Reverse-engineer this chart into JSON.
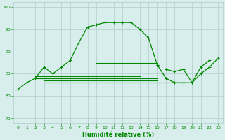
{
  "xlabel": "Humidité relative (%)",
  "background_color": "#d8eeed",
  "grid_color": "#b0cccc",
  "line_color": "#008800",
  "xlim": [
    -0.5,
    23.5
  ],
  "ylim": [
    74,
    101
  ],
  "yticks": [
    75,
    80,
    85,
    90,
    95,
    100
  ],
  "xticks": [
    0,
    1,
    2,
    3,
    4,
    5,
    6,
    7,
    8,
    9,
    10,
    11,
    12,
    13,
    14,
    15,
    16,
    17,
    18,
    19,
    20,
    21,
    22,
    23
  ],
  "curve_main": {
    "x": [
      0,
      1,
      2,
      3,
      4,
      5,
      6,
      7,
      8,
      9,
      10,
      11,
      12,
      13,
      14,
      15,
      16
    ],
    "y": [
      81.5,
      83,
      84,
      86.5,
      85,
      86.5,
      88,
      92,
      95.5,
      96,
      96.5,
      96.5,
      96.5,
      96.5,
      95,
      93,
      87
    ]
  },
  "curve_right1": {
    "x": [
      16,
      17,
      18,
      19,
      20,
      21,
      22
    ],
    "y": [
      87,
      84,
      83,
      83,
      83,
      86.5,
      88
    ]
  },
  "curve_right2": {
    "x": [
      17,
      18,
      19,
      20,
      21,
      22,
      23
    ],
    "y": [
      86,
      85.5,
      86,
      83,
      85,
      86.5,
      88.5
    ]
  },
  "flat1": {
    "x": [
      2,
      3,
      4,
      5,
      6,
      7,
      8,
      9,
      10,
      11,
      12,
      13,
      14,
      15,
      16
    ],
    "y": [
      84,
      84,
      84,
      84,
      84,
      84,
      84,
      84,
      84,
      84,
      84,
      84,
      84,
      84,
      84
    ]
  },
  "flat2": {
    "x": [
      3,
      4,
      5,
      6,
      7,
      8,
      9,
      10,
      11,
      12,
      13,
      14,
      15,
      16
    ],
    "y": [
      83.5,
      83.5,
      83.5,
      83.5,
      83.5,
      83.5,
      83.5,
      83.5,
      83.5,
      83.5,
      83.5,
      83.5,
      83.5,
      83.5
    ]
  },
  "flat3": {
    "x": [
      3,
      4,
      5,
      6,
      7,
      8,
      9,
      10,
      11,
      12,
      13,
      14,
      15,
      16,
      17,
      18,
      19
    ],
    "y": [
      83,
      83,
      83,
      83,
      83,
      83,
      83,
      83,
      83,
      83,
      83,
      83,
      83,
      83,
      83,
      83,
      83
    ]
  },
  "flat4": {
    "x": [
      9,
      10,
      11,
      12,
      13,
      14,
      15,
      16
    ],
    "y": [
      87.5,
      87.5,
      87.5,
      87.5,
      87.5,
      87.5,
      87.5,
      87.5
    ]
  },
  "flat5": {
    "x": [
      2,
      3,
      4,
      5,
      6,
      7,
      8,
      9,
      10,
      11,
      12,
      13,
      14
    ],
    "y": [
      84.5,
      84.5,
      84.5,
      84.5,
      84.5,
      84.5,
      84.5,
      84.5,
      84.5,
      84.5,
      84.5,
      84.5,
      84.5
    ]
  }
}
